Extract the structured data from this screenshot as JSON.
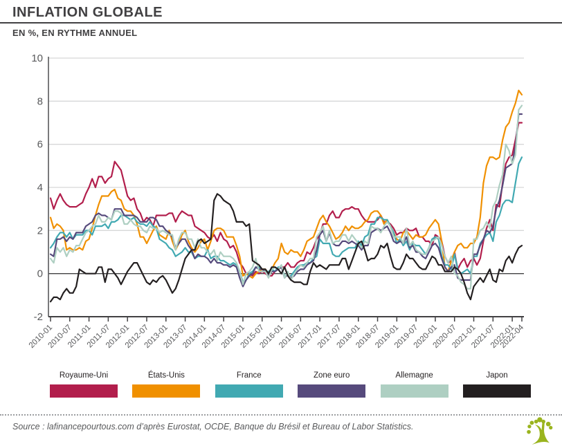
{
  "header": {
    "title": "INFLATION GLOBALE",
    "subtitle": "EN %, EN RYTHME ANNUEL"
  },
  "source": {
    "text": "Source : lafinancepourtous.com d’après Eurostat, OCDE, Banque du Brésil et Bureau of Labor Statistics."
  },
  "logo": {
    "name": "lafinancepourtous-tree-logo",
    "color": "#9ab41e"
  },
  "colors": {
    "grid": "#d6d7d8",
    "zero_line": "#414042",
    "axis": "#414042",
    "tick_text": "#58595b",
    "title_text": "#414042"
  },
  "chart_data": {
    "type": "line",
    "title": "INFLATION GLOBALE",
    "subtitle": "EN %, EN RYTHME ANNUEL",
    "xlabel": "",
    "ylabel": "",
    "ylim": [
      -2,
      10
    ],
    "yticks": [
      -2,
      0,
      2,
      4,
      6,
      8,
      10
    ],
    "grid": true,
    "legend_position": "bottom",
    "x_frequency": "monthly",
    "x_start": "2010-01",
    "x_end": "2022-04",
    "xtick_labels": [
      "2010-01",
      "2010-07",
      "2011-01",
      "2011-07",
      "2012-01",
      "2012-07",
      "2013-01",
      "2013-07",
      "2014-01",
      "2014-07",
      "2015-01",
      "2015-07",
      "2016-01",
      "2016-07",
      "2017-01",
      "2017-07",
      "2018-01",
      "2018-07",
      "2019-01",
      "2019-07",
      "2020-01",
      "2020-07",
      "2021-01",
      "2021-07",
      "2022-01",
      "2022-04"
    ],
    "xtick_month_index": [
      0,
      6,
      12,
      18,
      24,
      30,
      36,
      42,
      48,
      54,
      60,
      66,
      72,
      78,
      84,
      90,
      96,
      102,
      108,
      114,
      120,
      126,
      132,
      138,
      144,
      147
    ],
    "series": [
      {
        "name": "Royaume-Uni",
        "color": "#b21e4c",
        "values": [
          3.5,
          3.0,
          3.4,
          3.7,
          3.4,
          3.2,
          3.1,
          3.1,
          3.1,
          3.2,
          3.3,
          3.7,
          4.0,
          4.4,
          4.0,
          4.5,
          4.5,
          4.2,
          4.4,
          4.5,
          5.2,
          5.0,
          4.8,
          4.2,
          3.6,
          3.4,
          3.5,
          3.0,
          2.8,
          2.4,
          2.6,
          2.5,
          2.2,
          2.7,
          2.7,
          2.7,
          2.7,
          2.8,
          2.8,
          2.4,
          2.7,
          2.9,
          2.8,
          2.7,
          2.7,
          2.2,
          2.1,
          2.0,
          1.9,
          1.7,
          1.6,
          1.8,
          1.5,
          1.9,
          1.6,
          1.5,
          1.2,
          1.3,
          1.0,
          0.5,
          0.3,
          0.0,
          0.0,
          -0.1,
          0.1,
          0.0,
          0.1,
          0.0,
          -0.1,
          -0.1,
          0.1,
          0.2,
          0.3,
          0.3,
          0.5,
          0.3,
          0.3,
          0.5,
          0.6,
          0.6,
          1.0,
          0.9,
          1.2,
          1.6,
          1.8,
          2.3,
          2.3,
          2.7,
          2.9,
          2.6,
          2.6,
          2.9,
          3.0,
          3.0,
          3.1,
          3.0,
          3.0,
          2.7,
          2.5,
          2.4,
          2.4,
          2.4,
          2.5,
          2.7,
          2.4,
          2.4,
          2.3,
          2.1,
          1.8,
          1.9,
          1.9,
          2.1,
          2.0,
          2.0,
          2.1,
          1.7,
          1.7,
          1.5,
          1.5,
          1.3,
          1.8,
          1.7,
          1.5,
          0.8,
          0.5,
          0.6,
          1.0,
          0.2,
          0.5,
          0.7,
          0.3,
          0.6,
          0.7,
          0.4,
          0.7,
          1.5,
          2.1,
          2.5,
          2.0,
          3.2,
          3.1,
          4.2,
          5.1,
          5.4,
          5.5,
          6.2,
          7.0,
          7.0
        ]
      },
      {
        "name": "États-Unis",
        "color": "#f09000",
        "values": [
          2.6,
          2.1,
          2.3,
          2.2,
          2.0,
          1.1,
          1.2,
          1.1,
          1.1,
          1.2,
          1.1,
          1.5,
          1.6,
          2.1,
          2.7,
          3.2,
          3.6,
          3.6,
          3.6,
          3.8,
          3.9,
          3.5,
          3.4,
          3.0,
          2.9,
          2.9,
          2.7,
          2.3,
          1.7,
          1.7,
          1.4,
          1.7,
          2.0,
          2.2,
          1.8,
          1.7,
          1.6,
          2.0,
          1.5,
          1.1,
          1.4,
          1.8,
          2.0,
          1.5,
          1.2,
          1.0,
          1.2,
          1.5,
          1.6,
          1.1,
          1.5,
          2.0,
          2.1,
          2.1,
          2.0,
          1.7,
          1.7,
          1.7,
          1.3,
          0.8,
          -0.1,
          0.0,
          -0.1,
          -0.2,
          0.0,
          0.1,
          0.2,
          0.2,
          0.0,
          0.2,
          0.5,
          0.7,
          1.4,
          1.0,
          0.9,
          1.1,
          1.0,
          1.0,
          0.8,
          1.1,
          1.5,
          1.6,
          1.7,
          2.1,
          2.5,
          2.7,
          2.4,
          2.2,
          1.9,
          1.6,
          1.7,
          1.9,
          2.2,
          2.0,
          2.2,
          2.1,
          2.1,
          2.2,
          2.4,
          2.5,
          2.8,
          2.9,
          2.9,
          2.7,
          2.3,
          2.5,
          2.2,
          1.9,
          1.6,
          1.5,
          1.9,
          2.0,
          1.8,
          1.6,
          1.8,
          1.7,
          1.7,
          1.8,
          2.1,
          2.3,
          2.5,
          2.3,
          1.5,
          0.3,
          0.1,
          0.6,
          1.0,
          1.3,
          1.4,
          1.2,
          1.2,
          1.4,
          1.4,
          1.7,
          2.6,
          4.2,
          5.0,
          5.4,
          5.4,
          5.3,
          5.4,
          6.2,
          6.8,
          7.0,
          7.5,
          7.9,
          8.5,
          8.3
        ]
      },
      {
        "name": "France",
        "color": "#41a9b2",
        "values": [
          1.2,
          1.4,
          1.7,
          1.9,
          1.9,
          1.7,
          1.9,
          1.6,
          1.8,
          1.8,
          1.8,
          2.0,
          2.0,
          1.8,
          2.2,
          2.2,
          2.2,
          2.3,
          2.1,
          2.4,
          2.4,
          2.5,
          2.7,
          2.7,
          2.6,
          2.5,
          2.6,
          2.4,
          2.3,
          2.3,
          2.2,
          2.4,
          2.2,
          2.1,
          1.6,
          1.5,
          1.4,
          1.2,
          1.1,
          0.8,
          0.9,
          1.0,
          1.2,
          1.0,
          1.0,
          0.7,
          0.8,
          0.8,
          0.8,
          1.1,
          0.7,
          0.8,
          0.8,
          0.6,
          0.6,
          0.5,
          0.4,
          0.5,
          0.4,
          0.1,
          -0.4,
          -0.3,
          0.0,
          0.1,
          0.3,
          0.3,
          0.2,
          0.1,
          0.1,
          0.2,
          0.1,
          0.3,
          0.3,
          -0.1,
          -0.1,
          -0.1,
          0.1,
          0.3,
          0.4,
          0.4,
          0.5,
          0.5,
          0.7,
          0.8,
          1.6,
          1.4,
          1.4,
          1.4,
          0.9,
          0.8,
          0.8,
          1.0,
          1.1,
          1.2,
          1.2,
          1.2,
          1.5,
          1.3,
          1.7,
          1.8,
          2.3,
          2.3,
          2.6,
          2.6,
          2.5,
          2.5,
          2.2,
          1.9,
          1.4,
          1.6,
          1.3,
          1.5,
          1.1,
          1.4,
          1.3,
          1.3,
          1.1,
          0.9,
          1.2,
          1.6,
          1.7,
          1.6,
          0.8,
          0.4,
          0.4,
          0.2,
          0.9,
          0.2,
          0.0,
          0.1,
          0.2,
          0.0,
          0.8,
          0.8,
          1.4,
          1.6,
          1.8,
          1.9,
          1.5,
          2.4,
          2.7,
          3.2,
          3.4,
          3.4,
          3.3,
          4.2,
          5.1,
          5.4
        ]
      },
      {
        "name": "Zone euro",
        "color": "#564a7c",
        "values": [
          0.9,
          0.8,
          1.6,
          1.6,
          1.7,
          1.5,
          1.7,
          1.6,
          1.9,
          1.9,
          1.9,
          2.2,
          2.3,
          2.4,
          2.7,
          2.8,
          2.7,
          2.7,
          2.6,
          2.5,
          3.0,
          3.0,
          3.0,
          2.7,
          2.7,
          2.7,
          2.7,
          2.6,
          2.4,
          2.4,
          2.4,
          2.6,
          2.6,
          2.5,
          2.2,
          2.2,
          2.0,
          1.9,
          1.7,
          1.2,
          1.4,
          1.6,
          1.6,
          1.3,
          1.1,
          0.7,
          0.9,
          0.8,
          0.8,
          0.7,
          0.5,
          0.7,
          0.5,
          0.5,
          0.4,
          0.4,
          0.3,
          0.4,
          0.3,
          -0.2,
          -0.6,
          -0.3,
          -0.1,
          0.0,
          0.3,
          0.2,
          0.2,
          0.1,
          -0.1,
          0.1,
          0.1,
          0.2,
          0.3,
          -0.2,
          0.0,
          -0.2,
          -0.1,
          0.1,
          0.2,
          0.2,
          0.4,
          0.5,
          0.6,
          1.1,
          1.8,
          2.0,
          1.5,
          1.9,
          1.4,
          1.3,
          1.3,
          1.5,
          1.5,
          1.4,
          1.5,
          1.4,
          1.3,
          1.1,
          1.3,
          1.3,
          1.9,
          2.0,
          2.1,
          2.0,
          2.1,
          2.2,
          1.9,
          1.5,
          1.4,
          1.5,
          1.4,
          1.7,
          1.2,
          1.3,
          1.0,
          1.0,
          0.8,
          0.7,
          1.0,
          1.3,
          1.4,
          1.2,
          0.7,
          0.3,
          0.1,
          0.3,
          0.4,
          -0.2,
          -0.3,
          -0.3,
          -0.3,
          -0.3,
          0.9,
          0.9,
          1.3,
          1.6,
          2.0,
          1.9,
          2.2,
          3.0,
          3.4,
          4.1,
          4.9,
          5.0,
          5.1,
          5.9,
          7.4,
          7.4
        ]
      },
      {
        "name": "Allemagne",
        "color": "#aecfc2",
        "values": [
          0.7,
          0.5,
          1.2,
          1.0,
          1.2,
          0.8,
          1.1,
          1.0,
          1.3,
          1.3,
          1.6,
          1.9,
          2.0,
          2.2,
          2.3,
          2.7,
          2.4,
          2.4,
          2.6,
          2.5,
          2.9,
          2.9,
          2.8,
          2.3,
          2.3,
          2.5,
          2.3,
          2.2,
          2.2,
          2.0,
          1.9,
          2.2,
          2.1,
          2.1,
          1.9,
          2.0,
          1.9,
          1.8,
          1.8,
          1.1,
          1.6,
          1.9,
          1.9,
          1.6,
          1.6,
          1.2,
          1.6,
          1.2,
          1.2,
          1.0,
          0.9,
          1.1,
          0.6,
          1.0,
          0.8,
          0.8,
          0.8,
          0.7,
          0.5,
          0.1,
          -0.5,
          0.0,
          0.1,
          0.3,
          0.7,
          0.1,
          0.1,
          0.1,
          -0.2,
          0.2,
          0.3,
          0.2,
          0.4,
          -0.2,
          0.1,
          -0.3,
          0.0,
          0.2,
          0.4,
          0.3,
          0.5,
          0.7,
          0.7,
          1.7,
          1.9,
          2.2,
          1.5,
          2.0,
          1.4,
          1.5,
          1.5,
          1.8,
          1.8,
          1.5,
          1.8,
          1.6,
          1.4,
          1.2,
          1.5,
          1.4,
          2.2,
          2.1,
          2.1,
          1.9,
          2.2,
          2.4,
          2.2,
          1.7,
          1.7,
          1.7,
          1.4,
          2.1,
          1.3,
          1.5,
          1.1,
          1.0,
          0.9,
          0.9,
          1.2,
          1.5,
          1.6,
          1.7,
          1.3,
          0.8,
          0.5,
          0.8,
          0.0,
          -0.1,
          -0.4,
          -0.5,
          -0.7,
          -0.7,
          1.6,
          1.6,
          2.0,
          2.1,
          2.4,
          2.1,
          3.1,
          3.4,
          4.1,
          4.6,
          6.0,
          5.7,
          5.1,
          5.5,
          7.6,
          7.8
        ]
      },
      {
        "name": "Japon",
        "color": "#231f20",
        "values": [
          -1.3,
          -1.1,
          -1.1,
          -1.2,
          -0.9,
          -0.7,
          -0.9,
          -0.9,
          -0.6,
          0.2,
          0.1,
          0.0,
          0.0,
          0.0,
          0.0,
          0.3,
          0.3,
          -0.4,
          0.2,
          0.2,
          0.0,
          -0.2,
          -0.5,
          -0.2,
          0.1,
          0.3,
          0.5,
          0.5,
          0.2,
          -0.1,
          -0.4,
          -0.5,
          -0.3,
          -0.4,
          -0.2,
          -0.1,
          -0.3,
          -0.6,
          -0.9,
          -0.7,
          -0.3,
          0.2,
          0.7,
          0.9,
          1.1,
          1.1,
          1.5,
          1.6,
          1.4,
          1.5,
          1.6,
          3.4,
          3.7,
          3.6,
          3.4,
          3.3,
          3.2,
          2.9,
          2.4,
          2.4,
          2.4,
          2.2,
          2.3,
          0.6,
          0.5,
          0.4,
          0.2,
          0.2,
          0.0,
          0.3,
          0.3,
          0.2,
          0.0,
          0.3,
          -0.1,
          -0.3,
          -0.4,
          -0.4,
          -0.4,
          -0.5,
          -0.5,
          0.1,
          0.5,
          0.3,
          0.4,
          0.3,
          0.2,
          0.4,
          0.4,
          0.4,
          0.4,
          0.7,
          0.7,
          0.2,
          0.6,
          1.0,
          1.4,
          1.5,
          1.1,
          0.6,
          0.7,
          0.7,
          0.9,
          1.3,
          1.2,
          1.4,
          0.8,
          0.3,
          0.2,
          0.2,
          0.5,
          0.9,
          0.7,
          0.7,
          0.5,
          0.3,
          0.2,
          0.2,
          0.5,
          0.8,
          0.7,
          0.4,
          0.4,
          0.1,
          0.1,
          0.1,
          0.3,
          0.2,
          0.0,
          -0.4,
          -0.9,
          -1.2,
          -0.6,
          -0.4,
          -0.2,
          -0.4,
          -0.1,
          0.2,
          -0.3,
          -0.4,
          0.2,
          0.1,
          0.6,
          0.8,
          0.5,
          0.9,
          1.2,
          1.3
        ]
      }
    ]
  }
}
